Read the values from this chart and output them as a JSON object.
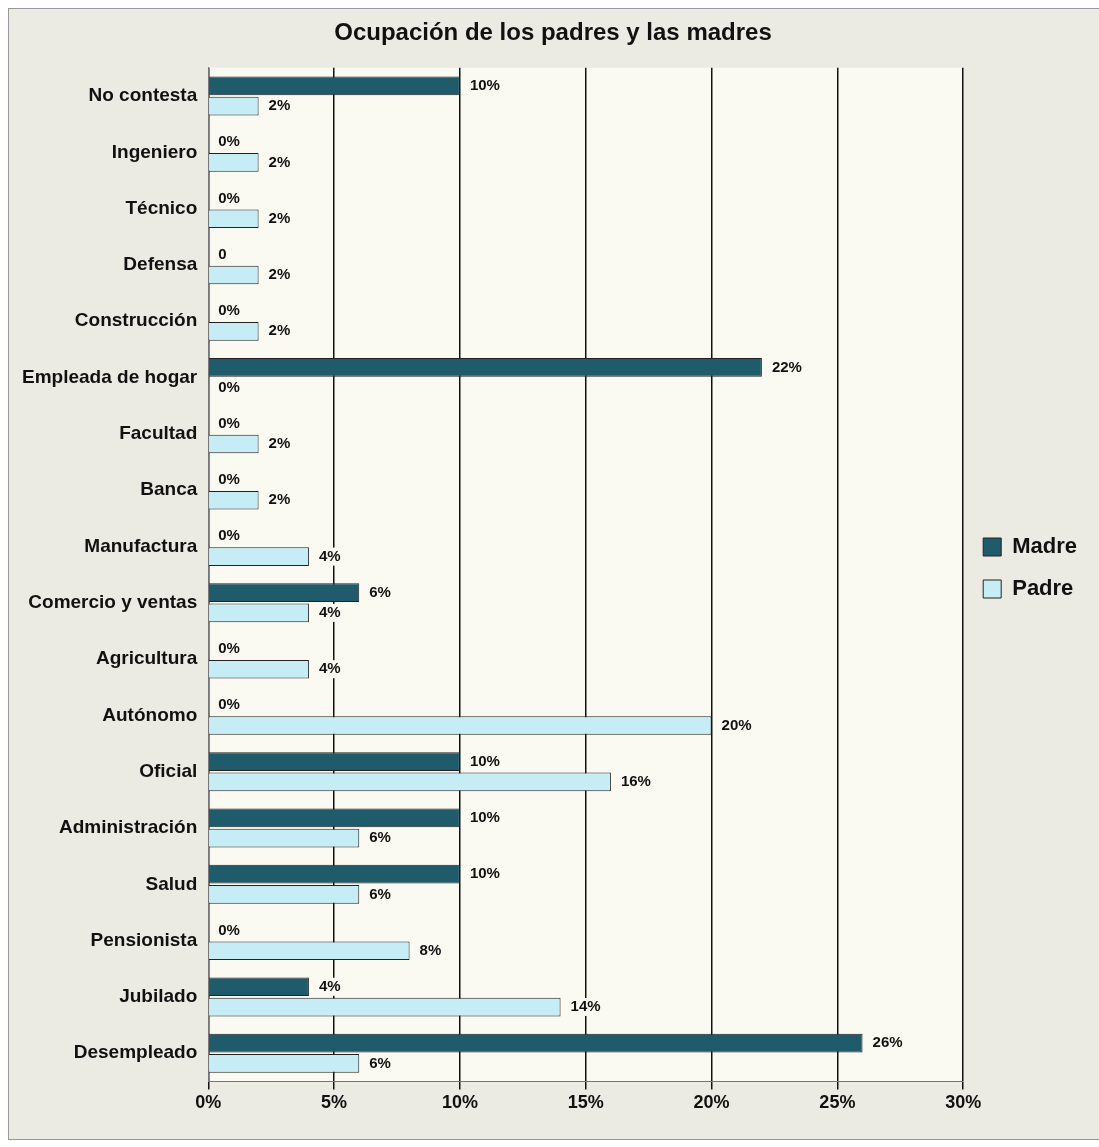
{
  "chart_data": {
    "type": "bar",
    "orientation": "horizontal",
    "title": "Ocupación de los padres y las madres",
    "categories": [
      "No contesta",
      "Ingeniero",
      "Técnico",
      "Defensa",
      "Construcción",
      "Empleada de hogar",
      "Facultad",
      "Banca",
      "Manufactura",
      "Comercio y ventas",
      "Agricultura",
      "Autónomo",
      "Oficial",
      "Administración",
      "Salud",
      "Pensionista",
      "Jubilado",
      "Desempleado"
    ],
    "series": [
      {
        "name": "Madre",
        "color": "#1f5b6b",
        "values": [
          10,
          0,
          0,
          0,
          0,
          22,
          0,
          0,
          0,
          6,
          0,
          0,
          10,
          10,
          10,
          0,
          4,
          26
        ],
        "value_labels": [
          "10%",
          "0%",
          "0%",
          "0",
          "0%",
          "22%",
          "0%",
          "0%",
          "0%",
          "6%",
          "0%",
          "0%",
          "10%",
          "10%",
          "10%",
          "0%",
          "4%",
          "26%"
        ]
      },
      {
        "name": "Padre",
        "color": "#c6ecf6",
        "values": [
          2,
          2,
          2,
          2,
          2,
          0,
          2,
          2,
          4,
          4,
          4,
          20,
          16,
          6,
          6,
          8,
          14,
          6
        ],
        "value_labels": [
          "2%",
          "2%",
          "2%",
          "2%",
          "2%",
          "0%",
          "2%",
          "2%",
          "4%",
          "4%",
          "4%",
          "20%",
          "16%",
          "6%",
          "6%",
          "8%",
          "14%",
          "6%"
        ]
      }
    ],
    "xlim": [
      0,
      30
    ],
    "xticks": [
      {
        "value": 0,
        "label": "0%"
      },
      {
        "value": 5,
        "label": "5%"
      },
      {
        "value": 10,
        "label": "10%"
      },
      {
        "value": 15,
        "label": "15%"
      },
      {
        "value": 20,
        "label": "20%"
      },
      {
        "value": 25,
        "label": "25%"
      },
      {
        "value": 30,
        "label": "30%"
      }
    ],
    "grid": "x",
    "legend": "right"
  }
}
